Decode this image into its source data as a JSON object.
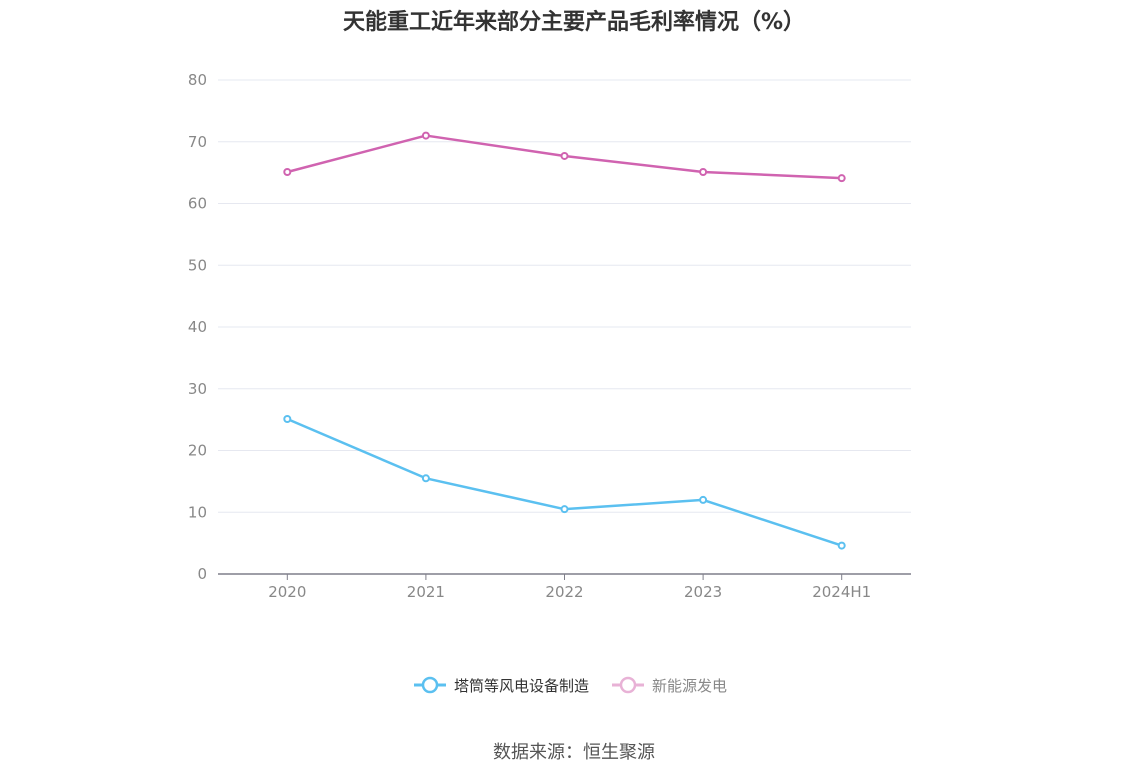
{
  "chart_data": {
    "type": "line",
    "title": "天能重工近年来部分主要产品毛利率情况（%）",
    "categories": [
      "2020",
      "2021",
      "2022",
      "2023",
      "2024H1"
    ],
    "ylim": [
      0,
      80
    ],
    "yticks": [
      0,
      10,
      20,
      30,
      40,
      50,
      60,
      70,
      80
    ],
    "grid": true,
    "legend_position": "bottom",
    "series": [
      {
        "name": "塔筒等风电设备制造",
        "color": "#5bc0f0",
        "values": [
          25.1,
          15.5,
          10.5,
          12.0,
          4.6
        ]
      },
      {
        "name": "新能源发电",
        "color": "#d063b0",
        "legend_color": "#e8b2d6",
        "values": [
          65.1,
          71.0,
          67.7,
          65.1,
          64.1
        ]
      }
    ]
  },
  "source": "数据来源：恒生聚源"
}
